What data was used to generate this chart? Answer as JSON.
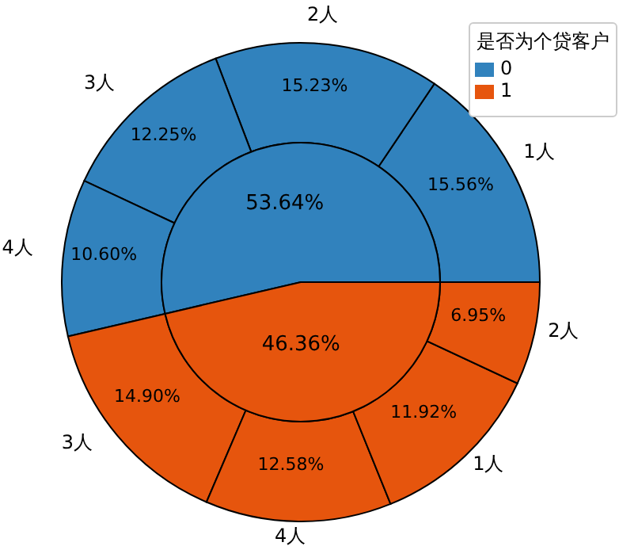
{
  "chart_data": [
    {
      "type": "donut",
      "categories": [
        "1人",
        "2人",
        "3人",
        "4人",
        "3人",
        "4人",
        "1人",
        "2人"
      ],
      "values": [
        15.56,
        15.23,
        12.25,
        10.6,
        14.9,
        12.58,
        11.92,
        6.95
      ],
      "colors": [
        "#3182bd",
        "#3182bd",
        "#3182bd",
        "#3182bd",
        "#e6550d",
        "#e6550d",
        "#e6550d",
        "#e6550d"
      ],
      "value_labels": [
        "15.56%",
        "15.23%",
        "12.25%",
        "10.60%",
        "14.90%",
        "12.58%",
        "11.92%",
        "6.95%"
      ]
    },
    {
      "type": "pie",
      "categories": [
        "0",
        "1"
      ],
      "values": [
        53.64,
        46.36
      ],
      "colors": [
        "#3182bd",
        "#e6550d"
      ],
      "value_labels": [
        "53.64%",
        "46.36%"
      ],
      "legend": "top right",
      "legend_title": "是否为个贷客户"
    }
  ]
}
